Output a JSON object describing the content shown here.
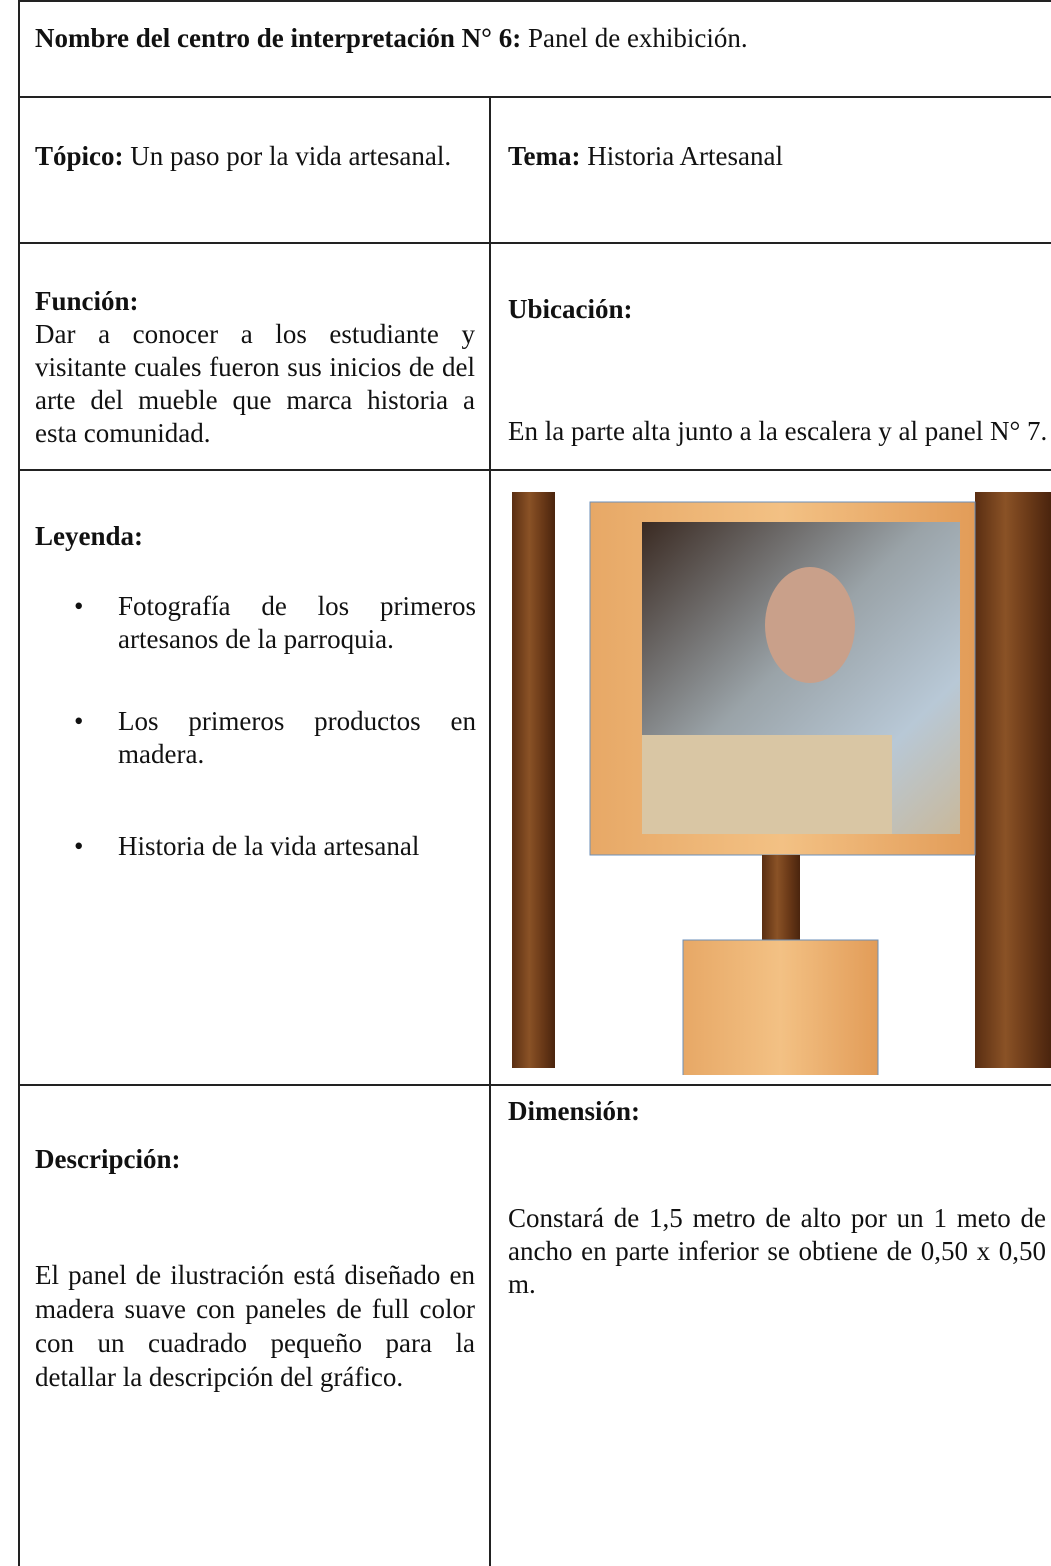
{
  "header": {
    "label": "Nombre del centro de interpretación N° 6:",
    "value": "Panel de exhibición."
  },
  "topico": {
    "label": "Tópico:",
    "value": "Un paso por la vida artesanal."
  },
  "tema": {
    "label": "Tema:",
    "value": "Historia Artesanal"
  },
  "funcion": {
    "label": "Función:",
    "text": "Dar a conocer a los estudiante y visitante cuales fueron sus inicios de del arte del mueble que marca historia a esta comunidad."
  },
  "ubicacion": {
    "label": "Ubicación:",
    "text": "En la parte alta junto a la escalera y al panel N° 7."
  },
  "leyenda": {
    "label": "Leyenda:",
    "items": [
      "Fotografía de los primeros artesanos de la parroquia.",
      "Los primeros productos en madera.",
      "Historia de la vida artesanal"
    ]
  },
  "descripcion": {
    "label": "Descripción:",
    "text": "El panel de ilustración está diseñado en madera suave con paneles de full color con un cuadrado pequeño para la detallar la descripción del gráfico."
  },
  "dimension": {
    "label": "Dimensión:",
    "text": "Constará de 1,5 metro de alto por un 1 meto de ancho en parte inferior se obtiene de 0,50 x 0,50 m."
  }
}
